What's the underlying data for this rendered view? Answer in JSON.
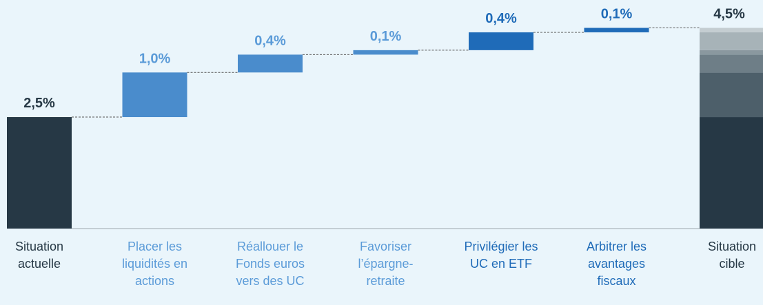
{
  "chart_data": {
    "type": "waterfall",
    "categories": [
      "Situation actuelle",
      "Placer les liquidités en actions",
      "Réallouer le Fonds euros vers des UC",
      "Favoriser l’épargne-retraite",
      "Privilégier les UC en ETF",
      "Arbitrer les avantages fiscaux",
      "Situation cible"
    ],
    "values": [
      2.5,
      1.0,
      0.4,
      0.1,
      0.4,
      0.1,
      4.5
    ],
    "value_labels": [
      "2,5%",
      "1,0%",
      "0,4%",
      "0,1%",
      "0,4%",
      "0,1%",
      "4,5%"
    ],
    "kinds": [
      "total",
      "step",
      "step",
      "step",
      "step",
      "step",
      "total"
    ],
    "colors": [
      "#263845",
      "#4a8ccc",
      "#4a8ccc",
      "#4a8ccc",
      "#1f6bb8",
      "#1f6bb8",
      "#263845"
    ],
    "label_colors": [
      "#263845",
      "#5b9bd8",
      "#5b9bd8",
      "#5b9bd8",
      "#1f6bb8",
      "#1f6bb8",
      "#263845"
    ],
    "final_segment_colors": [
      "#263845",
      "#4d5f6a",
      "#6e7e87",
      "#8a989f",
      "#a7b3b8",
      "#c4cdd1"
    ],
    "ylim": [
      0,
      4.6
    ]
  }
}
